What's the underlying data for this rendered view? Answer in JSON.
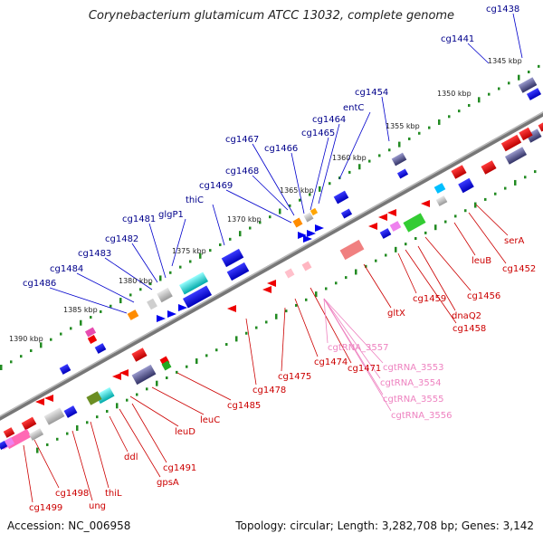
{
  "title": "Corynebacterium glutamicum ATCC 13032, complete genome",
  "footer": {
    "accession": "Accession: NC_006958",
    "topology": "Topology: circular; Length: 3,282,708 bp; Genes: 3,142"
  },
  "colors": {
    "forward_gene": "#0000ee",
    "reverse_gene": "#ee0000",
    "backbone": "#808080",
    "tick": "#228b22",
    "top_label": "#00008b",
    "bottom_label": "#cc0000",
    "rna_label": "#ee82c0"
  },
  "kbp_marks": [
    "1345 kbp",
    "1350 kbp",
    "1355 kbp",
    "1360 kbp",
    "1365 kbp",
    "1370 kbp",
    "1375 kbp",
    "1380 kbp",
    "1385 kbp",
    "1390 kbp"
  ],
  "top_labels": [
    "cg1438",
    "cg1441",
    "cg1454",
    "entC",
    "cg1464",
    "cg1465",
    "cg1466",
    "cg1467",
    "cg1468",
    "cg1469",
    "thiC",
    "glgP1",
    "cg1481",
    "cg1482",
    "cg1483",
    "cg1484",
    "cg1486"
  ],
  "bottom_labels": [
    "serA",
    "cg1452",
    "leuB",
    "cg1456",
    "dnaQ2",
    "cg1458",
    "cg1459",
    "gltX",
    "cg1471",
    "cg1474",
    "cg1475",
    "cg1478",
    "cg1485",
    "leuC",
    "leuD",
    "cg1491",
    "gpsA",
    "ddl",
    "thiL",
    "ung",
    "cg1498",
    "cg1499"
  ],
  "rna_labels": [
    "cgtRNA_3557",
    "cgtRNA_3553",
    "cgtRNA_3554",
    "cgtRNA_3555",
    "cgtRNA_3556"
  ]
}
